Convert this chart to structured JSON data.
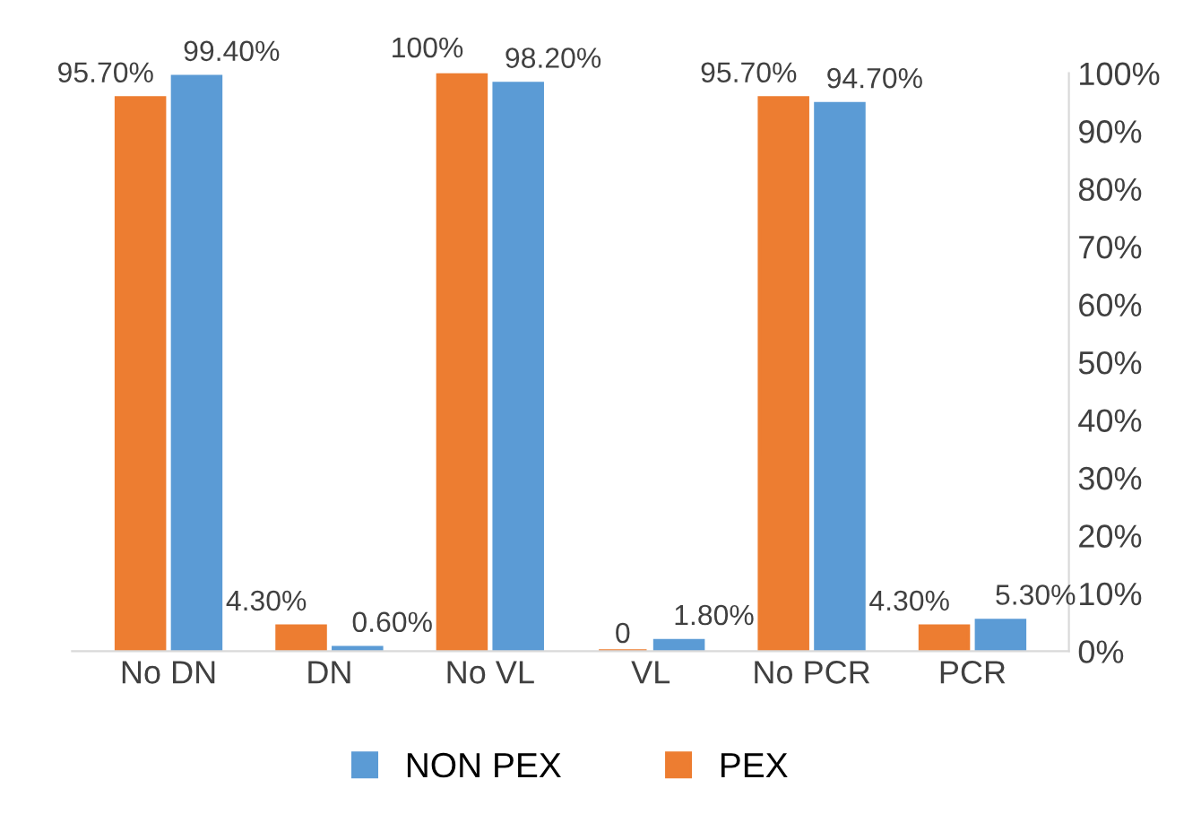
{
  "chart_data": {
    "type": "bar",
    "categories": [
      "No DN",
      "DN",
      "No VL",
      "VL",
      "No PCR",
      "PCR"
    ],
    "series": [
      {
        "name": "PEX",
        "color": "#ed7d31",
        "axis": "y2",
        "values": [
          95.7,
          4.3,
          100,
          0,
          95.7,
          4.3
        ],
        "value_labels": [
          "95.70%",
          "4.30%",
          "100%",
          "0",
          "95.70%",
          "4.30%"
        ]
      },
      {
        "name": "NON PEX",
        "color": "#5b9bd5",
        "axis": "y2",
        "values": [
          99.4,
          0.6,
          98.2,
          1.8,
          94.7,
          5.3
        ],
        "value_labels": [
          "99.40%",
          "0.60%",
          "98.20%",
          "1.80%",
          "94.70%",
          "5.30%"
        ]
      }
    ],
    "y2lim": [
      0,
      100
    ],
    "y2ticks": [
      {
        "value": 0,
        "label": "0%"
      },
      {
        "value": 10,
        "label": "10%"
      },
      {
        "value": 20,
        "label": "20%"
      },
      {
        "value": 30,
        "label": "30%"
      },
      {
        "value": 40,
        "label": "40%"
      },
      {
        "value": 50,
        "label": "50%"
      },
      {
        "value": 60,
        "label": "60%"
      },
      {
        "value": 70,
        "label": "70%"
      },
      {
        "value": 80,
        "label": "80%"
      },
      {
        "value": 90,
        "label": "90%"
      },
      {
        "value": 100,
        "label": "100%"
      }
    ],
    "legend": "bottom",
    "grid": false
  }
}
